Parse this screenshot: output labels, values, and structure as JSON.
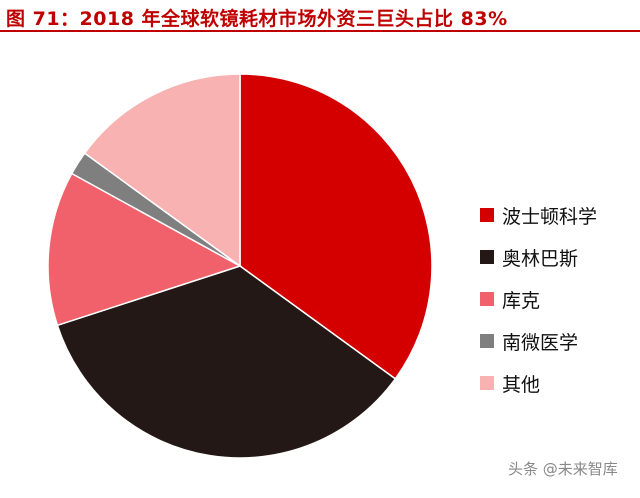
{
  "title": "图 71：2018 年全球软镜耗材市场外资三巨头占比 83%",
  "watermark": "头条 @未来智库",
  "chart_data": {
    "type": "pie",
    "title": "图 71：2018 年全球软镜耗材市场外资三巨头占比 83%",
    "legend_position": "right",
    "slices": [
      {
        "label": "波士顿科学",
        "value": 35,
        "color": "#d40000"
      },
      {
        "label": "奥林巴斯",
        "value": 35,
        "color": "#231815"
      },
      {
        "label": "库克",
        "value": 13,
        "color": "#f0616b"
      },
      {
        "label": "南微医学",
        "value": 2,
        "color": "#7f7f7f"
      },
      {
        "label": "其他",
        "value": 15,
        "color": "#f8b2b2"
      }
    ]
  }
}
